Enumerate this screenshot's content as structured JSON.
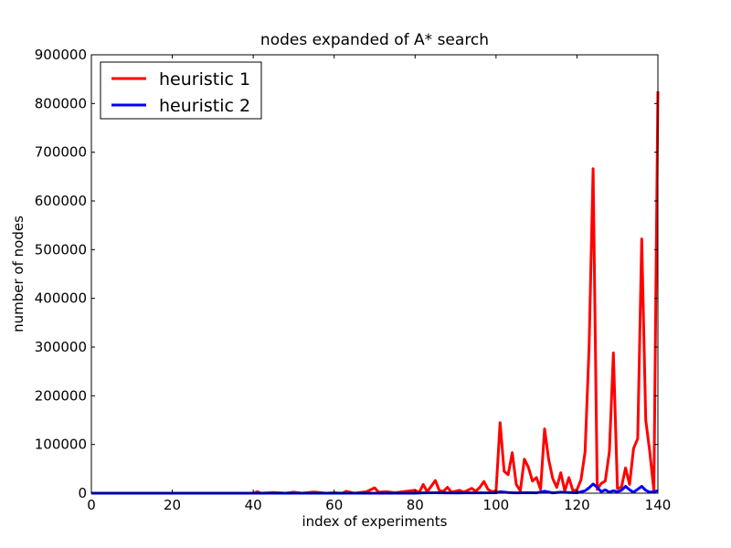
{
  "chart_data": {
    "type": "line",
    "title": "nodes expanded of A* search",
    "xlabel": "index of experiments",
    "ylabel": "number of nodes",
    "xlim": [
      0,
      140
    ],
    "ylim": [
      0,
      900000
    ],
    "x_ticks": [
      "0",
      "20",
      "40",
      "60",
      "80",
      "100",
      "120",
      "140"
    ],
    "y_ticks": [
      "0",
      "100000",
      "200000",
      "300000",
      "400000",
      "500000",
      "600000",
      "700000",
      "800000",
      "900000"
    ],
    "legend_position": "top-left",
    "grid": false,
    "series": [
      {
        "name": "heuristic 1",
        "color": "#ff0000",
        "points": [
          [
            0,
            0
          ],
          [
            10,
            0
          ],
          [
            20,
            0
          ],
          [
            30,
            0
          ],
          [
            40,
            0
          ],
          [
            41,
            3000
          ],
          [
            42,
            0
          ],
          [
            45,
            1500
          ],
          [
            48,
            0
          ],
          [
            50,
            2000
          ],
          [
            52,
            0
          ],
          [
            55,
            2500
          ],
          [
            58,
            0
          ],
          [
            60,
            1000
          ],
          [
            62,
            0
          ],
          [
            63,
            4000
          ],
          [
            65,
            0
          ],
          [
            68,
            3000
          ],
          [
            70,
            11000
          ],
          [
            71,
            2000
          ],
          [
            73,
            3000
          ],
          [
            75,
            1000
          ],
          [
            78,
            4000
          ],
          [
            80,
            6000
          ],
          [
            81,
            1000
          ],
          [
            82,
            18000
          ],
          [
            83,
            3000
          ],
          [
            85,
            26000
          ],
          [
            86,
            5000
          ],
          [
            87,
            4000
          ],
          [
            88,
            12000
          ],
          [
            89,
            2000
          ],
          [
            90,
            4000
          ],
          [
            91,
            6000
          ],
          [
            92,
            2000
          ],
          [
            94,
            10000
          ],
          [
            95,
            4000
          ],
          [
            96,
            12000
          ],
          [
            97,
            24000
          ],
          [
            98,
            8000
          ],
          [
            99,
            3000
          ],
          [
            100,
            5000
          ],
          [
            101,
            145000
          ],
          [
            102,
            45000
          ],
          [
            103,
            38000
          ],
          [
            104,
            83000
          ],
          [
            105,
            18000
          ],
          [
            106,
            5000
          ],
          [
            107,
            70000
          ],
          [
            108,
            53000
          ],
          [
            109,
            25000
          ],
          [
            110,
            32000
          ],
          [
            111,
            8000
          ],
          [
            112,
            132000
          ],
          [
            113,
            70000
          ],
          [
            114,
            30000
          ],
          [
            115,
            12000
          ],
          [
            116,
            42000
          ],
          [
            117,
            5000
          ],
          [
            118,
            32000
          ],
          [
            119,
            5000
          ],
          [
            120,
            7000
          ],
          [
            121,
            28000
          ],
          [
            122,
            85000
          ],
          [
            123,
            300000
          ],
          [
            124,
            666000
          ],
          [
            125,
            8000
          ],
          [
            126,
            20000
          ],
          [
            127,
            25000
          ],
          [
            128,
            85000
          ],
          [
            129,
            288000
          ],
          [
            130,
            10000
          ],
          [
            131,
            12000
          ],
          [
            132,
            52000
          ],
          [
            133,
            18000
          ],
          [
            134,
            92000
          ],
          [
            135,
            112000
          ],
          [
            136,
            522000
          ],
          [
            137,
            150000
          ],
          [
            138,
            85000
          ],
          [
            139,
            5000
          ],
          [
            140,
            825000
          ]
        ]
      },
      {
        "name": "heuristic 2",
        "color": "#0000ff",
        "points": [
          [
            0,
            0
          ],
          [
            20,
            0
          ],
          [
            40,
            0
          ],
          [
            60,
            0
          ],
          [
            80,
            0
          ],
          [
            82,
            800
          ],
          [
            85,
            1000
          ],
          [
            90,
            500
          ],
          [
            100,
            900
          ],
          [
            101,
            3000
          ],
          [
            103,
            1500
          ],
          [
            105,
            800
          ],
          [
            108,
            1200
          ],
          [
            110,
            700
          ],
          [
            112,
            4000
          ],
          [
            114,
            800
          ],
          [
            116,
            2000
          ],
          [
            118,
            1500
          ],
          [
            120,
            1000
          ],
          [
            121,
            3000
          ],
          [
            122,
            5000
          ],
          [
            123,
            11000
          ],
          [
            124,
            19000
          ],
          [
            125,
            12000
          ],
          [
            126,
            3000
          ],
          [
            127,
            7000
          ],
          [
            128,
            2000
          ],
          [
            129,
            5000
          ],
          [
            130,
            3000
          ],
          [
            131,
            6000
          ],
          [
            132,
            14000
          ],
          [
            133,
            7000
          ],
          [
            134,
            2000
          ],
          [
            135,
            8000
          ],
          [
            136,
            14000
          ],
          [
            137,
            6000
          ],
          [
            138,
            2000
          ],
          [
            139,
            3000
          ],
          [
            140,
            5000
          ]
        ]
      }
    ]
  }
}
